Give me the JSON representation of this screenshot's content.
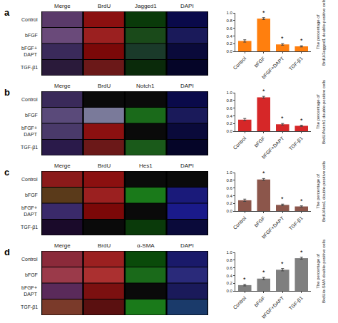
{
  "chart_data": [
    {
      "type": "image",
      "panel_label": "a",
      "categories": [
        "Merge",
        "BrdU",
        "Jagged1",
        "DAPI"
      ],
      "rows": [
        "Control",
        "bFGF",
        "bFGF+\nDAPT",
        "TGF-β1"
      ],
      "colors": [
        [
          "#5a3a6a",
          "#8b1010",
          "#0a3a0a",
          "#0a0a4a"
        ],
        [
          "#6a4a7a",
          "#9b2020",
          "#1a4a1a",
          "#1a1a5a"
        ],
        [
          "#3a2a5a",
          "#7b0808",
          "#1a3a2a",
          "#0a0a3a"
        ],
        [
          "#2a1a3a",
          "#6b1818",
          "#0a2a0a",
          "#050528"
        ]
      ]
    },
    {
      "type": "bar",
      "ylabel": "The percentage of\nBrdU/Jagged1 double-positive cells",
      "categories": [
        "Control",
        "bFGF",
        "bFGF+DAPT",
        "TGF-β1"
      ],
      "values": [
        0.27,
        0.85,
        0.18,
        0.13
      ],
      "errors": [
        0.03,
        0.025,
        0.02,
        0.015
      ],
      "ylim": [
        0,
        1.0
      ],
      "yticks": [
        {
          "value": 0,
          "label": "0.0"
        },
        0.2,
        0.4,
        0.6,
        0.8,
        {
          "value": 1,
          "label": "1.0"
        }
      ],
      "annotations": [
        {
          "category": "bFGF",
          "text": "*"
        },
        {
          "category": "bFGF+DAPT",
          "text": "*"
        },
        {
          "category": "TGF-β1",
          "text": "*"
        }
      ],
      "grid": false
    },
    {
      "type": "image",
      "panel_label": "b",
      "categories": [
        "Merge",
        "BrdU",
        "Notch1",
        "DAPI"
      ],
      "rows": [
        "Control",
        "bFGF",
        "bFGF+\nDAPT",
        "TGF-β1"
      ],
      "colors": [
        [
          "#3a2a5a",
          "#0a0a0a",
          "#0a0a0a",
          "#0a0a4a"
        ],
        [
          "#5a4a7a",
          "#7a7a9a",
          "#1a6a1a",
          "#1a1a5a"
        ],
        [
          "#4a3a6a",
          "#8b1010",
          "#0a0a0a",
          "#0a0a3a"
        ],
        [
          "#2a1a4a",
          "#6b1818",
          "#1a5a1a",
          "#050528"
        ]
      ]
    },
    {
      "type": "bar",
      "ylabel": "The percentage of\nBrdU/Notch1 double-positive cells",
      "categories": [
        "Control",
        "bFGF",
        "bFGF+DAPT",
        "TGF-β1"
      ],
      "values": [
        0.3,
        0.88,
        0.18,
        0.14
      ],
      "errors": [
        0.03,
        0.025,
        0.02,
        0.015
      ],
      "ylim": [
        0,
        1.0
      ],
      "yticks": [
        {
          "value": 0,
          "label": "0.0"
        },
        0.2,
        0.4,
        0.6,
        0.8,
        {
          "value": 1,
          "label": "1.0"
        }
      ],
      "annotations": [
        {
          "category": "bFGF",
          "text": "*"
        },
        {
          "category": "bFGF+DAPT",
          "text": "*"
        },
        {
          "category": "TGF-β1",
          "text": "*"
        }
      ],
      "grid": false
    },
    {
      "type": "image",
      "panel_label": "c",
      "categories": [
        "Merge",
        "BrdU",
        "Hes1",
        "DAPI"
      ],
      "rows": [
        "Control",
        "bFGF",
        "bFGF+\nDAPT",
        "TGF-β1"
      ],
      "colors": [
        [
          "#8b1a1a",
          "#8b1010",
          "#0a0a0a",
          "#0a0a0a"
        ],
        [
          "#5a3a1a",
          "#9b2020",
          "#1a7a1a",
          "#1a1a7a"
        ],
        [
          "#3a2a6a",
          "#7b0808",
          "#0a0a0a",
          "#1a1a8a"
        ],
        [
          "#1a0a2a",
          "#0a0a0a",
          "#0a3a0a",
          "#0a0a3a"
        ]
      ]
    },
    {
      "type": "bar",
      "ylabel": "The percentage of\nBrdU/Hes1 double-positive cells",
      "categories": [
        "Control",
        "bFGF",
        "bFGF+DAPT",
        "TGF-β1"
      ],
      "values": [
        0.28,
        0.82,
        0.16,
        0.12
      ],
      "errors": [
        0.03,
        0.025,
        0.02,
        0.015
      ],
      "ylim": [
        0,
        1.0
      ],
      "yticks": [
        {
          "value": 0,
          "label": "0.0"
        },
        0.2,
        0.4,
        0.6,
        0.8,
        {
          "value": 1,
          "label": "1.0"
        }
      ],
      "annotations": [
        {
          "category": "bFGF",
          "text": "*"
        },
        {
          "category": "bFGF+DAPT",
          "text": "*"
        },
        {
          "category": "TGF-β1",
          "text": "*"
        }
      ],
      "grid": false
    },
    {
      "type": "image",
      "panel_label": "d",
      "categories": [
        "Merge",
        "BrdU",
        "α-SMA",
        "DAPI"
      ],
      "rows": [
        "Control",
        "bFGF",
        "bFGF+\nDAPT",
        "TGF-β1"
      ],
      "colors": [
        [
          "#8b2a3a",
          "#9b2020",
          "#0a4a0a",
          "#1a1a6a"
        ],
        [
          "#9b3a4a",
          "#ab3030",
          "#1a6a1a",
          "#2a2a7a"
        ],
        [
          "#5a2a5a",
          "#7b1010",
          "#0a0a0a",
          "#1a1a5a"
        ],
        [
          "#7a3a2a",
          "#5a1010",
          "#1a7a1a",
          "#1a3a6a"
        ]
      ]
    },
    {
      "type": "bar",
      "ylabel": "The percentage of\nBrdU/α-SMA double-positive cells",
      "categories": [
        "Control",
        "bFGF",
        "bFGF+DAPT",
        "TGF-β1"
      ],
      "values": [
        0.15,
        0.32,
        0.55,
        0.85
      ],
      "errors": [
        0.02,
        0.03,
        0.03,
        0.025
      ],
      "ylim": [
        0,
        1.0
      ],
      "yticks": [
        {
          "value": 0,
          "label": "0.0"
        },
        0.2,
        0.4,
        0.6,
        0.8,
        {
          "value": 1,
          "label": "1.0"
        }
      ],
      "annotations": [
        {
          "category": "Control",
          "text": "*"
        },
        {
          "category": "bFGF",
          "text": "*"
        },
        {
          "category": "bFGF+DAPT",
          "text": "*"
        },
        {
          "category": "TGF-β1",
          "text": "*"
        }
      ],
      "grid": false
    }
  ]
}
